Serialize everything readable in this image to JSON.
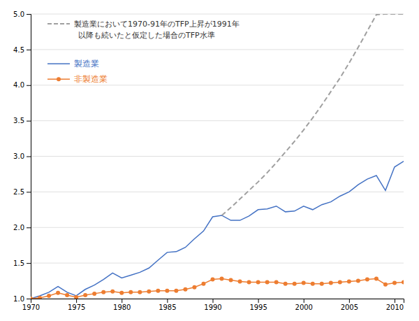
{
  "chart_data": {
    "type": "line",
    "xlim": [
      1970,
      2011
    ],
    "ylim": [
      1.0,
      5.0
    ],
    "xticks": [
      1970,
      1975,
      1980,
      1985,
      1990,
      1995,
      2000,
      2005,
      2010
    ],
    "yticks": [
      {
        "value": 1.0,
        "label": "1.0"
      },
      1.5,
      {
        "value": 2.0,
        "label": "2.0"
      },
      2.5,
      {
        "value": 3.0,
        "label": "3.0"
      },
      3.5,
      {
        "value": 4.0,
        "label": "4.0"
      },
      4.5,
      {
        "value": 5.0,
        "label": "5.0"
      }
    ],
    "grid": true,
    "legend": "upper left",
    "series": [
      {
        "name": "製造業",
        "color": "#4472c4",
        "line_style": "solid",
        "x": [
          1970,
          1971,
          1972,
          1973,
          1974,
          1975,
          1976,
          1977,
          1978,
          1979,
          1980,
          1981,
          1982,
          1983,
          1984,
          1985,
          1986,
          1987,
          1988,
          1989,
          1990,
          1991,
          1992,
          1993,
          1994,
          1995,
          1996,
          1997,
          1998,
          1999,
          2000,
          2001,
          2002,
          2003,
          2004,
          2005,
          2006,
          2007,
          2008,
          2009,
          2010,
          2011
        ],
        "values": [
          1.0,
          1.04,
          1.09,
          1.17,
          1.09,
          1.04,
          1.13,
          1.19,
          1.27,
          1.36,
          1.29,
          1.33,
          1.37,
          1.43,
          1.54,
          1.65,
          1.66,
          1.72,
          1.84,
          1.95,
          2.15,
          2.17,
          2.1,
          2.1,
          2.16,
          2.25,
          2.26,
          2.3,
          2.22,
          2.23,
          2.3,
          2.25,
          2.32,
          2.36,
          2.44,
          2.5,
          2.6,
          2.68,
          2.73,
          2.52,
          2.85,
          2.93
        ]
      },
      {
        "name": "非製造業",
        "color": "#ed7d31",
        "line_style": "solid",
        "marker": "circle",
        "x": [
          1970,
          1971,
          1972,
          1973,
          1974,
          1975,
          1976,
          1977,
          1978,
          1979,
          1980,
          1981,
          1982,
          1983,
          1984,
          1985,
          1986,
          1987,
          1988,
          1989,
          1990,
          1991,
          1992,
          1993,
          1994,
          1995,
          1996,
          1997,
          1998,
          1999,
          2000,
          2001,
          2002,
          2003,
          2004,
          2005,
          2006,
          2007,
          2008,
          2009,
          2010,
          2011
        ],
        "values": [
          1.0,
          1.01,
          1.04,
          1.08,
          1.05,
          1.02,
          1.05,
          1.07,
          1.09,
          1.1,
          1.08,
          1.09,
          1.09,
          1.1,
          1.11,
          1.11,
          1.11,
          1.13,
          1.16,
          1.21,
          1.27,
          1.28,
          1.26,
          1.24,
          1.23,
          1.23,
          1.23,
          1.23,
          1.21,
          1.21,
          1.22,
          1.21,
          1.21,
          1.22,
          1.23,
          1.24,
          1.25,
          1.27,
          1.28,
          1.2,
          1.22,
          1.23
        ]
      },
      {
        "name": "製造業において1970-91年のTFP上昇が1991年",
        "color": "#a0a0a0",
        "line_style": "dashed",
        "x": [
          1991,
          1992,
          1993,
          1994,
          1995,
          1996,
          1997,
          1998,
          1999,
          2000,
          2001,
          2002,
          2003,
          2004,
          2005,
          2006,
          2007,
          2008,
          2009,
          2010,
          2011
        ],
        "values": [
          2.17,
          2.28,
          2.4,
          2.52,
          2.64,
          2.77,
          2.91,
          3.06,
          3.21,
          3.37,
          3.54,
          3.72,
          3.91,
          4.1,
          4.31,
          4.53,
          4.76,
          4.99,
          5.0,
          5.0,
          5.0
        ]
      }
    ],
    "annotations": [
      "以降も続いたと仮定した場合のTFP水準"
    ]
  }
}
